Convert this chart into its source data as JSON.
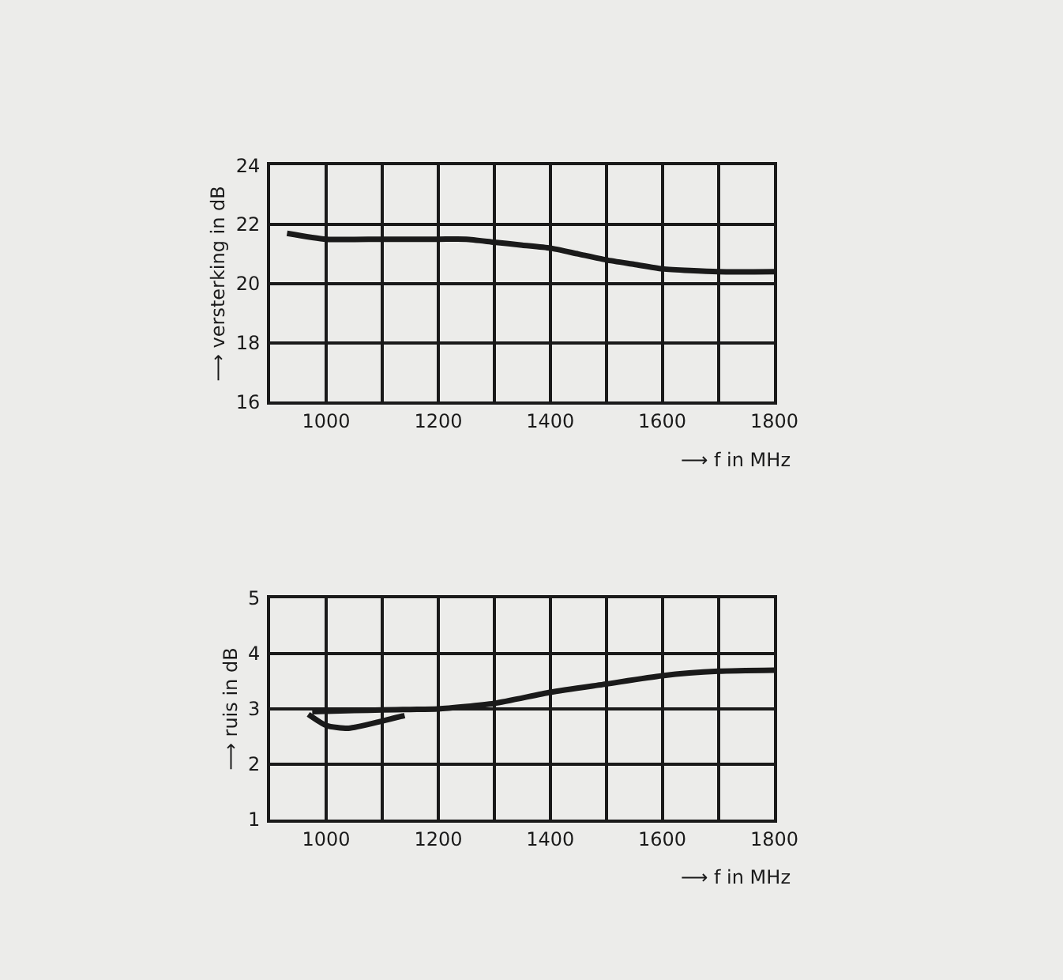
{
  "chart_data": [
    {
      "type": "line",
      "ylabel": "⟶ versterking in dB",
      "xlabel": "⟶ f in MHz",
      "xlim": [
        900,
        1800
      ],
      "ylim": [
        16,
        24
      ],
      "xticks": [
        {
          "value": 900,
          "label": null
        },
        1000,
        {
          "value": 1100,
          "label": null
        },
        1200,
        {
          "value": 1300,
          "label": null
        },
        1400,
        {
          "value": 1500,
          "label": null
        },
        1600,
        {
          "value": 1700,
          "label": null
        },
        1800
      ],
      "yticks": [
        16,
        18,
        20,
        22,
        24
      ],
      "grid": true,
      "marker": "none",
      "line_style": "solid",
      "series": [
        {
          "color": "#1a1a1a",
          "x": [
            930,
            1000,
            1100,
            1200,
            1250,
            1300,
            1350,
            1400,
            1450,
            1500,
            1550,
            1600,
            1700,
            1800
          ],
          "values": [
            21.7,
            21.5,
            21.5,
            21.5,
            21.5,
            21.4,
            21.3,
            21.2,
            21.0,
            20.8,
            20.65,
            20.5,
            20.4,
            20.4
          ]
        }
      ]
    },
    {
      "type": "line",
      "ylabel": "⟶ ruis in dB",
      "xlabel": "⟶ f in MHz",
      "xlim": [
        900,
        1800
      ],
      "ylim": [
        1,
        5
      ],
      "xticks": [
        {
          "value": 900,
          "label": null
        },
        1000,
        {
          "value": 1100,
          "label": null
        },
        1200,
        {
          "value": 1300,
          "label": null
        },
        1400,
        {
          "value": 1500,
          "label": null
        },
        1600,
        {
          "value": 1700,
          "label": null
        },
        1800
      ],
      "yticks": [
        1,
        2,
        3,
        4,
        5
      ],
      "grid": true,
      "marker": "none",
      "line_style": "solid",
      "series": [
        {
          "color": "#1a1a1a",
          "x": [
            968,
            1000,
            1040,
            1100,
            1140,
            null,
            975,
            1050,
            1100,
            1150,
            1200,
            1300,
            1400,
            1500,
            1600,
            1700,
            1800
          ],
          "values": [
            2.9,
            2.7,
            2.65,
            2.78,
            2.88,
            null,
            2.95,
            2.97,
            2.98,
            2.99,
            3.0,
            3.1,
            3.3,
            3.45,
            3.6,
            3.68,
            3.7
          ]
        }
      ]
    }
  ]
}
